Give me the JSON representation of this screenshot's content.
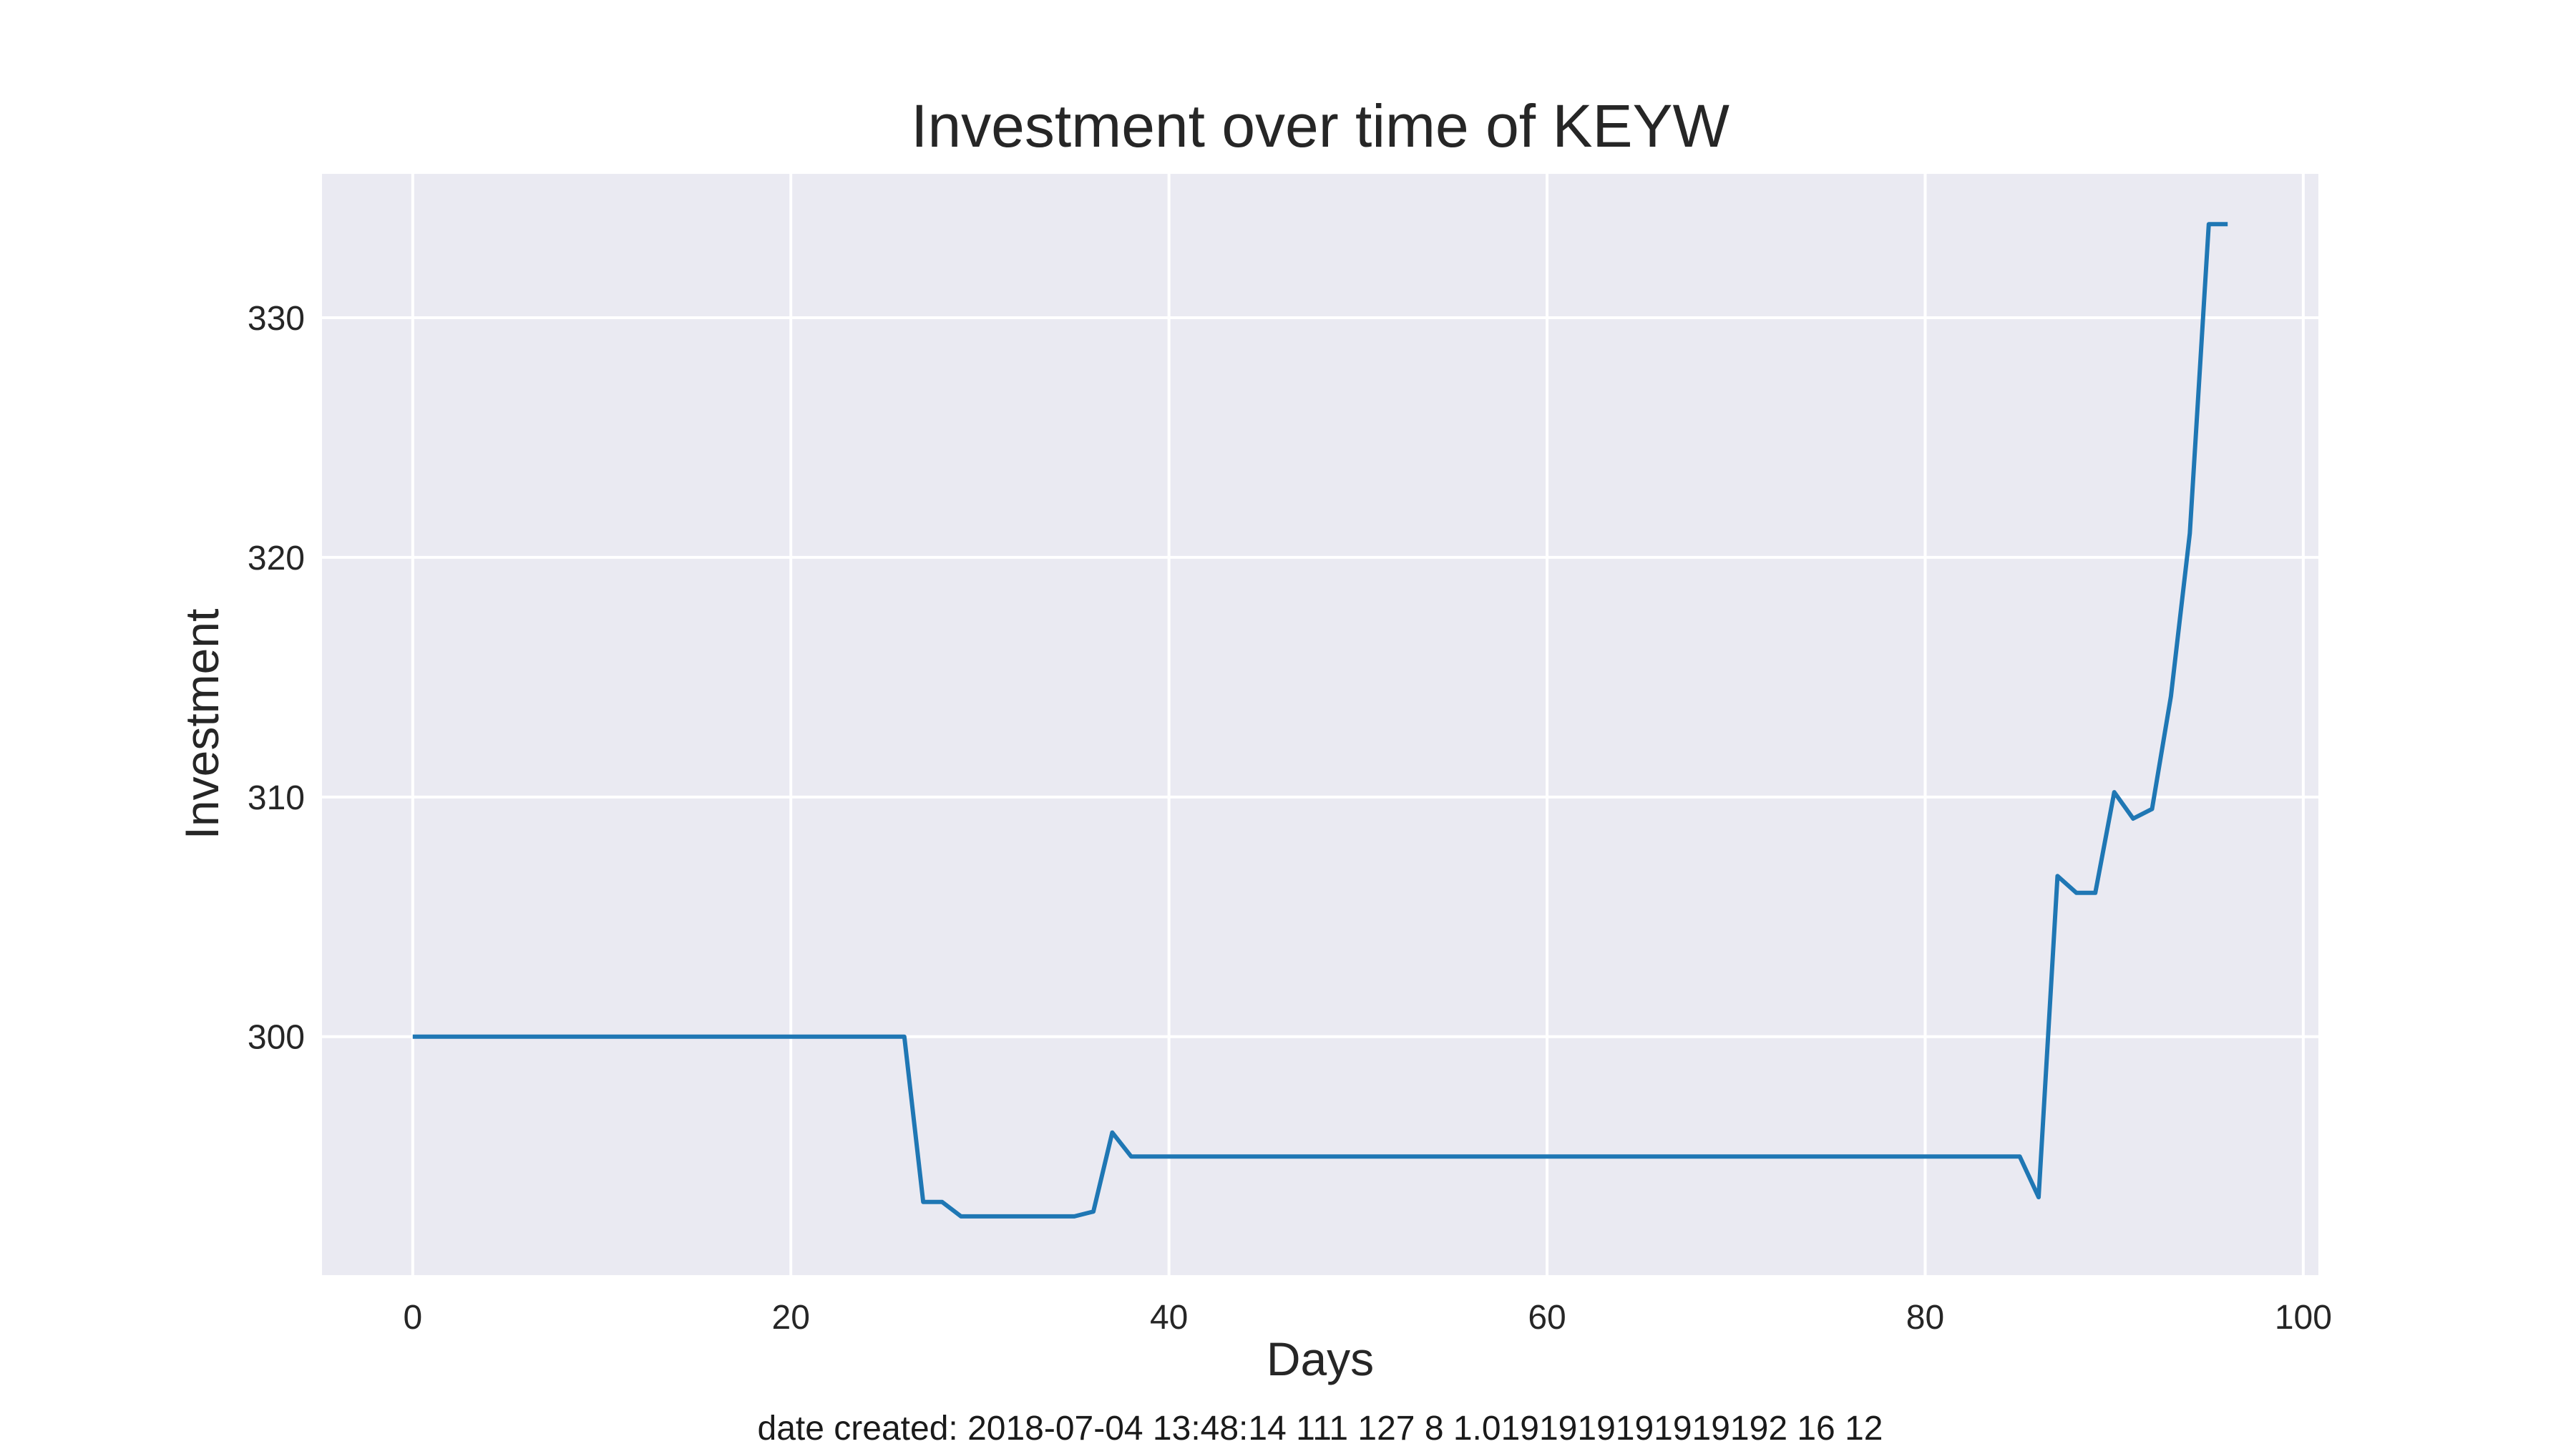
{
  "chart_data": {
    "type": "line",
    "title": "Investment over time of KEYW",
    "xlabel": "Days",
    "ylabel": "Investment",
    "xlim": [
      -4.8,
      100.8
    ],
    "ylim": [
      290.05,
      336.0
    ],
    "xticks": [
      0,
      20,
      40,
      60,
      80,
      100
    ],
    "yticks": [
      300,
      310,
      320,
      330
    ],
    "grid": true,
    "legend": "none",
    "series": [
      {
        "color": "#1f77b4",
        "x": [
          0,
          1,
          2,
          3,
          4,
          5,
          6,
          7,
          8,
          9,
          10,
          11,
          12,
          13,
          14,
          15,
          16,
          17,
          18,
          19,
          20,
          21,
          22,
          23,
          24,
          25,
          26,
          27,
          28,
          29,
          30,
          31,
          32,
          33,
          34,
          35,
          36,
          37,
          38,
          39,
          40,
          41,
          42,
          43,
          44,
          45,
          46,
          47,
          48,
          49,
          50,
          51,
          52,
          53,
          54,
          55,
          56,
          57,
          58,
          59,
          60,
          61,
          62,
          63,
          64,
          65,
          66,
          67,
          68,
          69,
          70,
          71,
          72,
          73,
          74,
          75,
          76,
          77,
          78,
          79,
          80,
          81,
          82,
          83,
          84,
          85,
          86,
          87,
          88,
          89,
          90,
          91,
          92,
          93,
          94,
          95,
          96
        ],
        "y": [
          300,
          300,
          300,
          300,
          300,
          300,
          300,
          300,
          300,
          300,
          300,
          300,
          300,
          300,
          300,
          300,
          300,
          300,
          300,
          300,
          300,
          300,
          300,
          300,
          300,
          300,
          300,
          293.1,
          293.1,
          292.5,
          292.5,
          292.5,
          292.5,
          292.5,
          292.5,
          292.5,
          292.7,
          296.0,
          295.0,
          295.0,
          295.0,
          295.0,
          295.0,
          295.0,
          295.0,
          295.0,
          295.0,
          295.0,
          295.0,
          295.0,
          295.0,
          295.0,
          295.0,
          295.0,
          295.0,
          295.0,
          295.0,
          295.0,
          295.0,
          295.0,
          295.0,
          295.0,
          295.0,
          295.0,
          295.0,
          295.0,
          295.0,
          295.0,
          295.0,
          295.0,
          295.0,
          295.0,
          295.0,
          295.0,
          295.0,
          295.0,
          295.0,
          295.0,
          295.0,
          295.0,
          295.0,
          295.0,
          295.0,
          295.0,
          295.0,
          295.0,
          293.3,
          306.7,
          306.0,
          306.0,
          310.2,
          309.1,
          309.5,
          314.2,
          321.0,
          333.9,
          333.9
        ]
      }
    ]
  },
  "footer": {
    "text": "date created: 2018-07-04 13:48:14 111 127 8 1.0191919191919192 16 12"
  }
}
